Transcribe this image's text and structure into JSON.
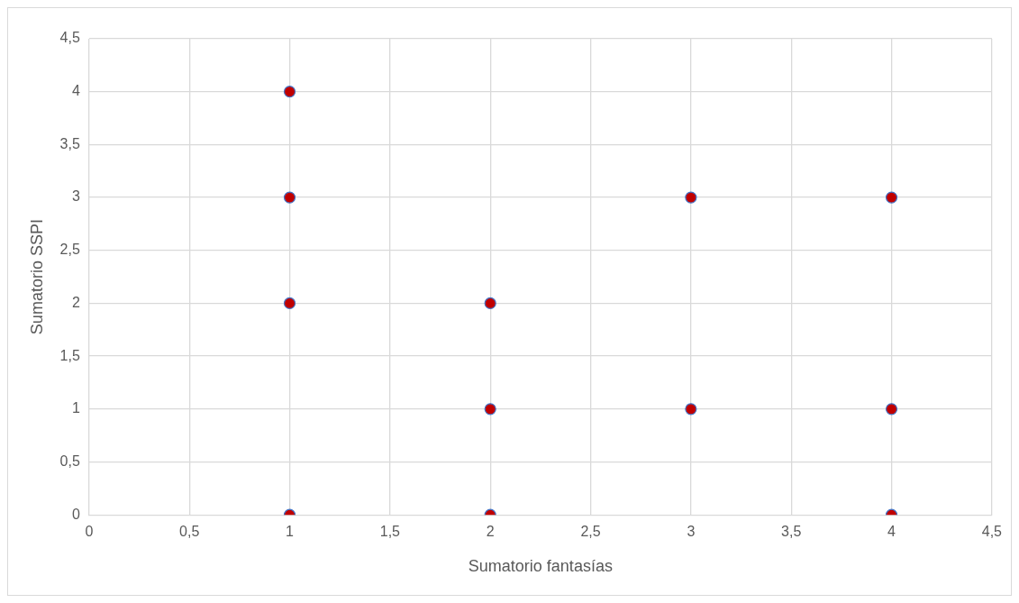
{
  "chart_data": {
    "type": "scatter",
    "xlabel": "Sumatorio fantasías",
    "ylabel": "Sumatorio SSPI",
    "x": [
      1,
      1,
      1,
      1,
      2,
      2,
      2,
      3,
      3,
      4,
      4,
      4
    ],
    "values": [
      4,
      3,
      2,
      0,
      2,
      1,
      0,
      3,
      1,
      3,
      1,
      0
    ],
    "color": "#c00000",
    "marker": "circle",
    "grid": true,
    "legend": false,
    "xlim": [
      0,
      4.5
    ],
    "ylim": [
      0,
      4.5
    ],
    "xticks": [
      0,
      {
        "value": 0.5,
        "label": "0,5"
      },
      1,
      {
        "value": 1.5,
        "label": "1,5"
      },
      2,
      {
        "value": 2.5,
        "label": "2,5"
      },
      3,
      {
        "value": 3.5,
        "label": "3,5"
      },
      4,
      {
        "value": 4.5,
        "label": "4,5"
      }
    ],
    "yticks": [
      0,
      {
        "value": 0.5,
        "label": "0,5"
      },
      1,
      {
        "value": 1.5,
        "label": "1,5"
      },
      2,
      {
        "value": 2.5,
        "label": "2,5"
      },
      3,
      {
        "value": 3.5,
        "label": "3,5"
      },
      4,
      {
        "value": 4.5,
        "label": "4,5"
      }
    ]
  }
}
